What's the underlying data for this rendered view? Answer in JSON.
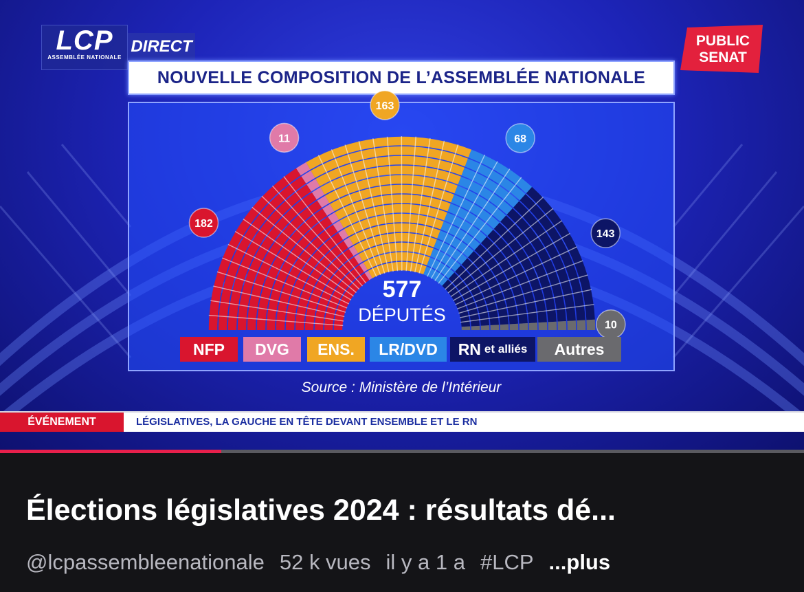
{
  "broadcast": {
    "channel_logo": "LCP",
    "channel_sub": "ASSEMBLÉE NATIONALE",
    "live_label": "DIRECT",
    "partner_logo_line1": "PUBLIC",
    "partner_logo_line2": "SENAT",
    "title": "NOUVELLE COMPOSITION DE L’ASSEMBLÉE NATIONALE",
    "source": "Source : Ministère de l’Intérieur",
    "ticker_tag": "ÉVÉNEMENT",
    "ticker_text": "LÉGISLATIVES, LA GAUCHE EN TÊTE DEVANT ENSEMBLE ET LE RN"
  },
  "chart_data": {
    "type": "parliament",
    "total": 577,
    "total_label": "DÉPUTÉS",
    "series": [
      {
        "name": "NFP",
        "value": 182,
        "color": "#d9152e"
      },
      {
        "name": "DVG",
        "value": 11,
        "color": "#e07aa8"
      },
      {
        "name": "ENS.",
        "value": 163,
        "color": "#f0a623"
      },
      {
        "name": "LR/DVD",
        "value": 68,
        "color": "#2b86e6"
      },
      {
        "name": "RN",
        "name_suffix": "et alliés",
        "value": 143,
        "color": "#0d1566"
      },
      {
        "name": "Autres",
        "value": 10,
        "color": "#6a6a6e"
      }
    ]
  },
  "player": {
    "progress": 0.275
  },
  "video": {
    "title": "Élections législatives 2024 : résultats dé...",
    "channel": "@lcpassembleenationale",
    "views": "52 k vues",
    "age": "il y a 1 a",
    "hashtag": "#LCP",
    "more_label": "...plus"
  },
  "colors": {
    "accent": "#e8204c",
    "background": "#141417"
  }
}
